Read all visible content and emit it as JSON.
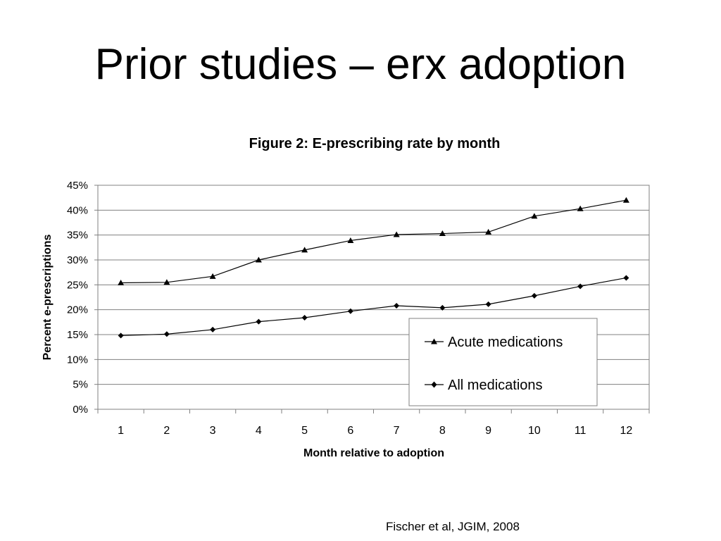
{
  "slide": {
    "title": "Prior studies – erx adoption",
    "citation": "Fischer et al, JGIM, 2008"
  },
  "chart_data": {
    "type": "line",
    "title": "Figure 2: E-prescribing rate by month",
    "xlabel": "Month relative to adoption",
    "ylabel": "Percent e-prescriptions",
    "categories": [
      "1",
      "2",
      "3",
      "4",
      "5",
      "6",
      "7",
      "8",
      "9",
      "10",
      "11",
      "12"
    ],
    "y_ticks": [
      "0%",
      "5%",
      "10%",
      "15%",
      "20%",
      "25%",
      "30%",
      "35%",
      "40%",
      "45%"
    ],
    "ylim": [
      0,
      45
    ],
    "grid": "horizontal",
    "legend_position": "bottom-right inside plot",
    "series": [
      {
        "name": "Acute medications",
        "marker": "triangle",
        "values": [
          25.4,
          25.5,
          26.7,
          30.0,
          32.0,
          33.9,
          35.1,
          35.3,
          35.6,
          38.8,
          40.3,
          42.0
        ]
      },
      {
        "name": "All medications",
        "marker": "diamond",
        "values": [
          14.8,
          15.1,
          16.0,
          17.6,
          18.4,
          19.7,
          20.8,
          20.4,
          21.1,
          22.8,
          24.7,
          26.4
        ]
      }
    ],
    "colors": {
      "line": "#000000",
      "grid": "#808080",
      "plot_bg": "#ffffff"
    }
  }
}
